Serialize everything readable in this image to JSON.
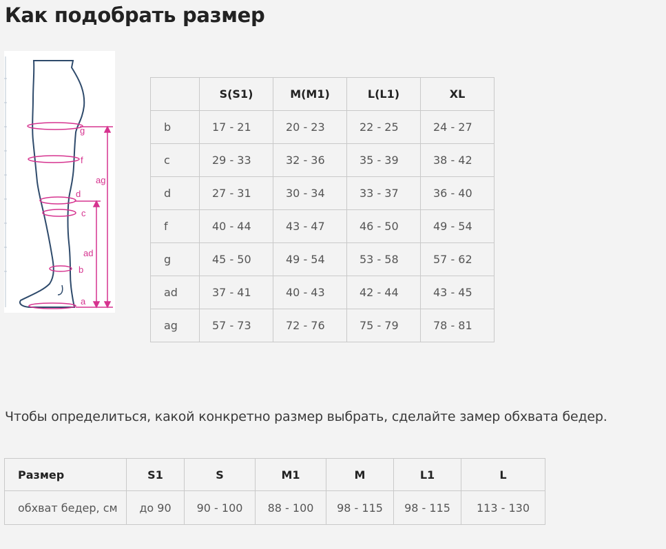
{
  "page": {
    "title": "Как подобрать размер",
    "intro": "Чтобы определиться, какой конкретно размер выбрать, сделайте замер обхвата бедер."
  },
  "figure": {
    "labels": [
      "g",
      "f",
      "ag",
      "d",
      "c",
      "ad",
      "b",
      "a"
    ],
    "colors": {
      "outline": "#2e4a6b",
      "measure": "#d6338f"
    }
  },
  "size_chart": {
    "headers": [
      "",
      "S(S1)",
      "M(M1)",
      "L(L1)",
      "XL"
    ],
    "rows": [
      {
        "label": "b",
        "values": [
          "17 - 21",
          "20 - 23",
          "22 - 25",
          "24 - 27"
        ]
      },
      {
        "label": "c",
        "values": [
          "29 - 33",
          "32 - 36",
          "35 - 39",
          "38 - 42"
        ]
      },
      {
        "label": "d",
        "values": [
          "27 - 31",
          "30 - 34",
          "33 - 37",
          "36 - 40"
        ]
      },
      {
        "label": "f",
        "values": [
          "40 - 44",
          "43 - 47",
          "46 - 50",
          "49 - 54"
        ]
      },
      {
        "label": "g",
        "values": [
          "45 - 50",
          "49 - 54",
          "53 - 58",
          "57 - 62"
        ]
      },
      {
        "label": "ad",
        "values": [
          "37 - 41",
          "40 - 43",
          "42 - 44",
          "43 - 45"
        ]
      },
      {
        "label": "ag",
        "values": [
          "57 - 73",
          "72 - 76",
          "75 - 79",
          "78 - 81"
        ]
      }
    ]
  },
  "hip_chart": {
    "headers": [
      "Размер",
      "S1",
      "S",
      "M1",
      "M",
      "L1",
      "L"
    ],
    "row": {
      "label": "обхват бедер, см",
      "values": [
        "до 90",
        "90 - 100",
        "88 - 100",
        "98 - 115",
        "98 - 115",
        "113 - 130"
      ]
    }
  }
}
